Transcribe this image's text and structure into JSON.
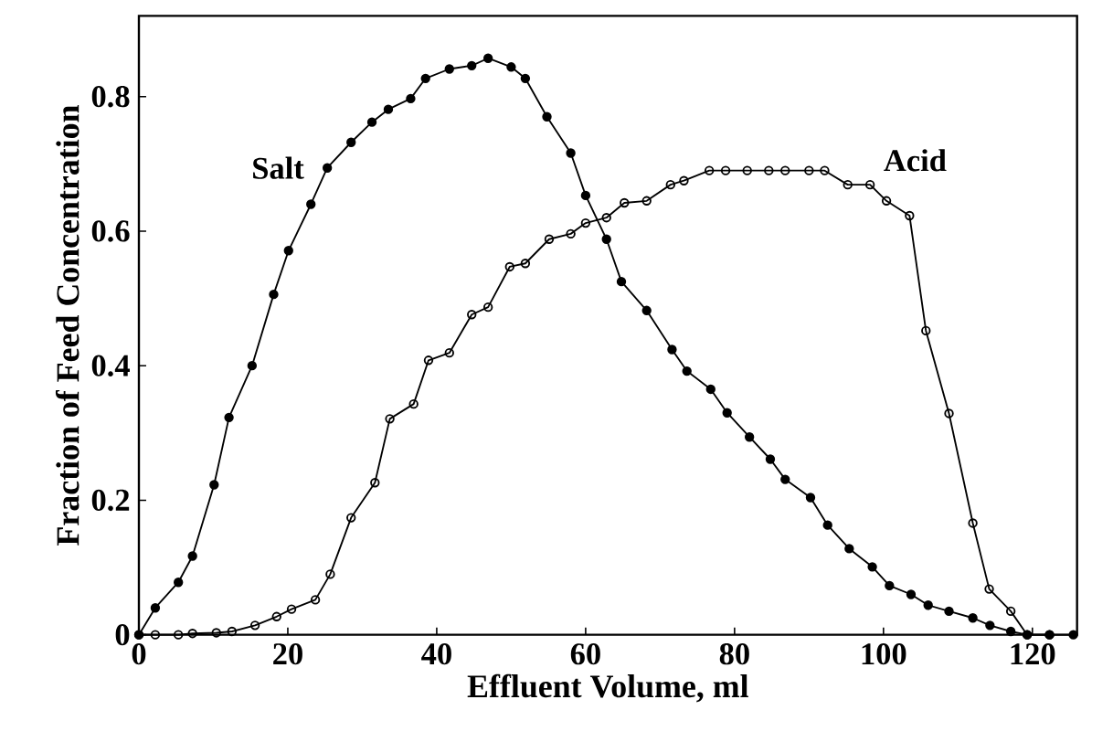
{
  "chart_data": {
    "type": "line",
    "xlabel": "Effluent Volume, ml",
    "ylabel": "Fraction of Feed Concentration",
    "xlim": [
      0,
      126
    ],
    "ylim": [
      0,
      0.92
    ],
    "xticks": [
      0,
      20,
      40,
      60,
      80,
      100,
      120
    ],
    "yticks": [
      0,
      0.2,
      0.4,
      0.6,
      0.8
    ],
    "line_style": "solid",
    "series": [
      {
        "name": "Salt",
        "color": "#000000",
        "marker": "circle",
        "x": [
          0,
          2.2,
          5.3,
          7.2,
          10.1,
          12.1,
          15.2,
          18.1,
          20.1,
          23.1,
          25.3,
          28.5,
          31.3,
          33.5,
          36.5,
          38.5,
          41.7,
          44.7,
          46.9,
          50,
          51.9,
          54.8,
          58,
          60,
          62.8,
          64.8,
          68.2,
          71.6,
          73.6,
          76.8,
          79,
          82,
          84.8,
          86.8,
          90.2,
          92.5,
          95.4,
          98.5,
          100.8,
          103.7,
          106,
          108.8,
          112,
          114.3,
          117.1,
          119.3,
          122.3,
          125.5
        ],
        "values": [
          0,
          0.04,
          0.078,
          0.117,
          0.223,
          0.323,
          0.4,
          0.506,
          0.571,
          0.64,
          0.694,
          0.732,
          0.762,
          0.781,
          0.797,
          0.827,
          0.841,
          0.846,
          0.857,
          0.844,
          0.827,
          0.77,
          0.716,
          0.653,
          0.588,
          0.525,
          0.482,
          0.424,
          0.392,
          0.365,
          0.33,
          0.294,
          0.261,
          0.231,
          0.204,
          0.163,
          0.128,
          0.101,
          0.073,
          0.06,
          0.044,
          0.035,
          0.025,
          0.014,
          0.005,
          0,
          0,
          0
        ]
      },
      {
        "name": "Acid",
        "color": "#000000",
        "marker": "circle",
        "x": [
          0,
          2.2,
          5.3,
          7.2,
          10.4,
          12.5,
          15.6,
          18.5,
          20.5,
          23.7,
          25.7,
          28.5,
          31.7,
          33.7,
          36.9,
          38.9,
          41.7,
          44.7,
          46.9,
          49.8,
          51.9,
          55.1,
          58,
          60,
          62.8,
          65.2,
          68.2,
          71.4,
          73.2,
          76.6,
          78.8,
          81.7,
          84.6,
          86.8,
          90,
          92.1,
          95.2,
          98.2,
          100.4,
          103.5,
          105.7,
          108.8,
          112,
          114.2,
          117.1,
          119.3,
          122.3
        ],
        "values": [
          0,
          0,
          0,
          0.002,
          0.003,
          0.005,
          0.014,
          0.027,
          0.038,
          0.052,
          0.09,
          0.174,
          0.226,
          0.321,
          0.343,
          0.408,
          0.419,
          0.476,
          0.487,
          0.547,
          0.552,
          0.588,
          0.596,
          0.612,
          0.62,
          0.642,
          0.645,
          0.669,
          0.675,
          0.69,
          0.69,
          0.69,
          0.69,
          0.69,
          0.69,
          0.69,
          0.669,
          0.669,
          0.645,
          0.623,
          0.452,
          0.329,
          0.166,
          0.068,
          0.035,
          0,
          0
        ]
      }
    ]
  }
}
